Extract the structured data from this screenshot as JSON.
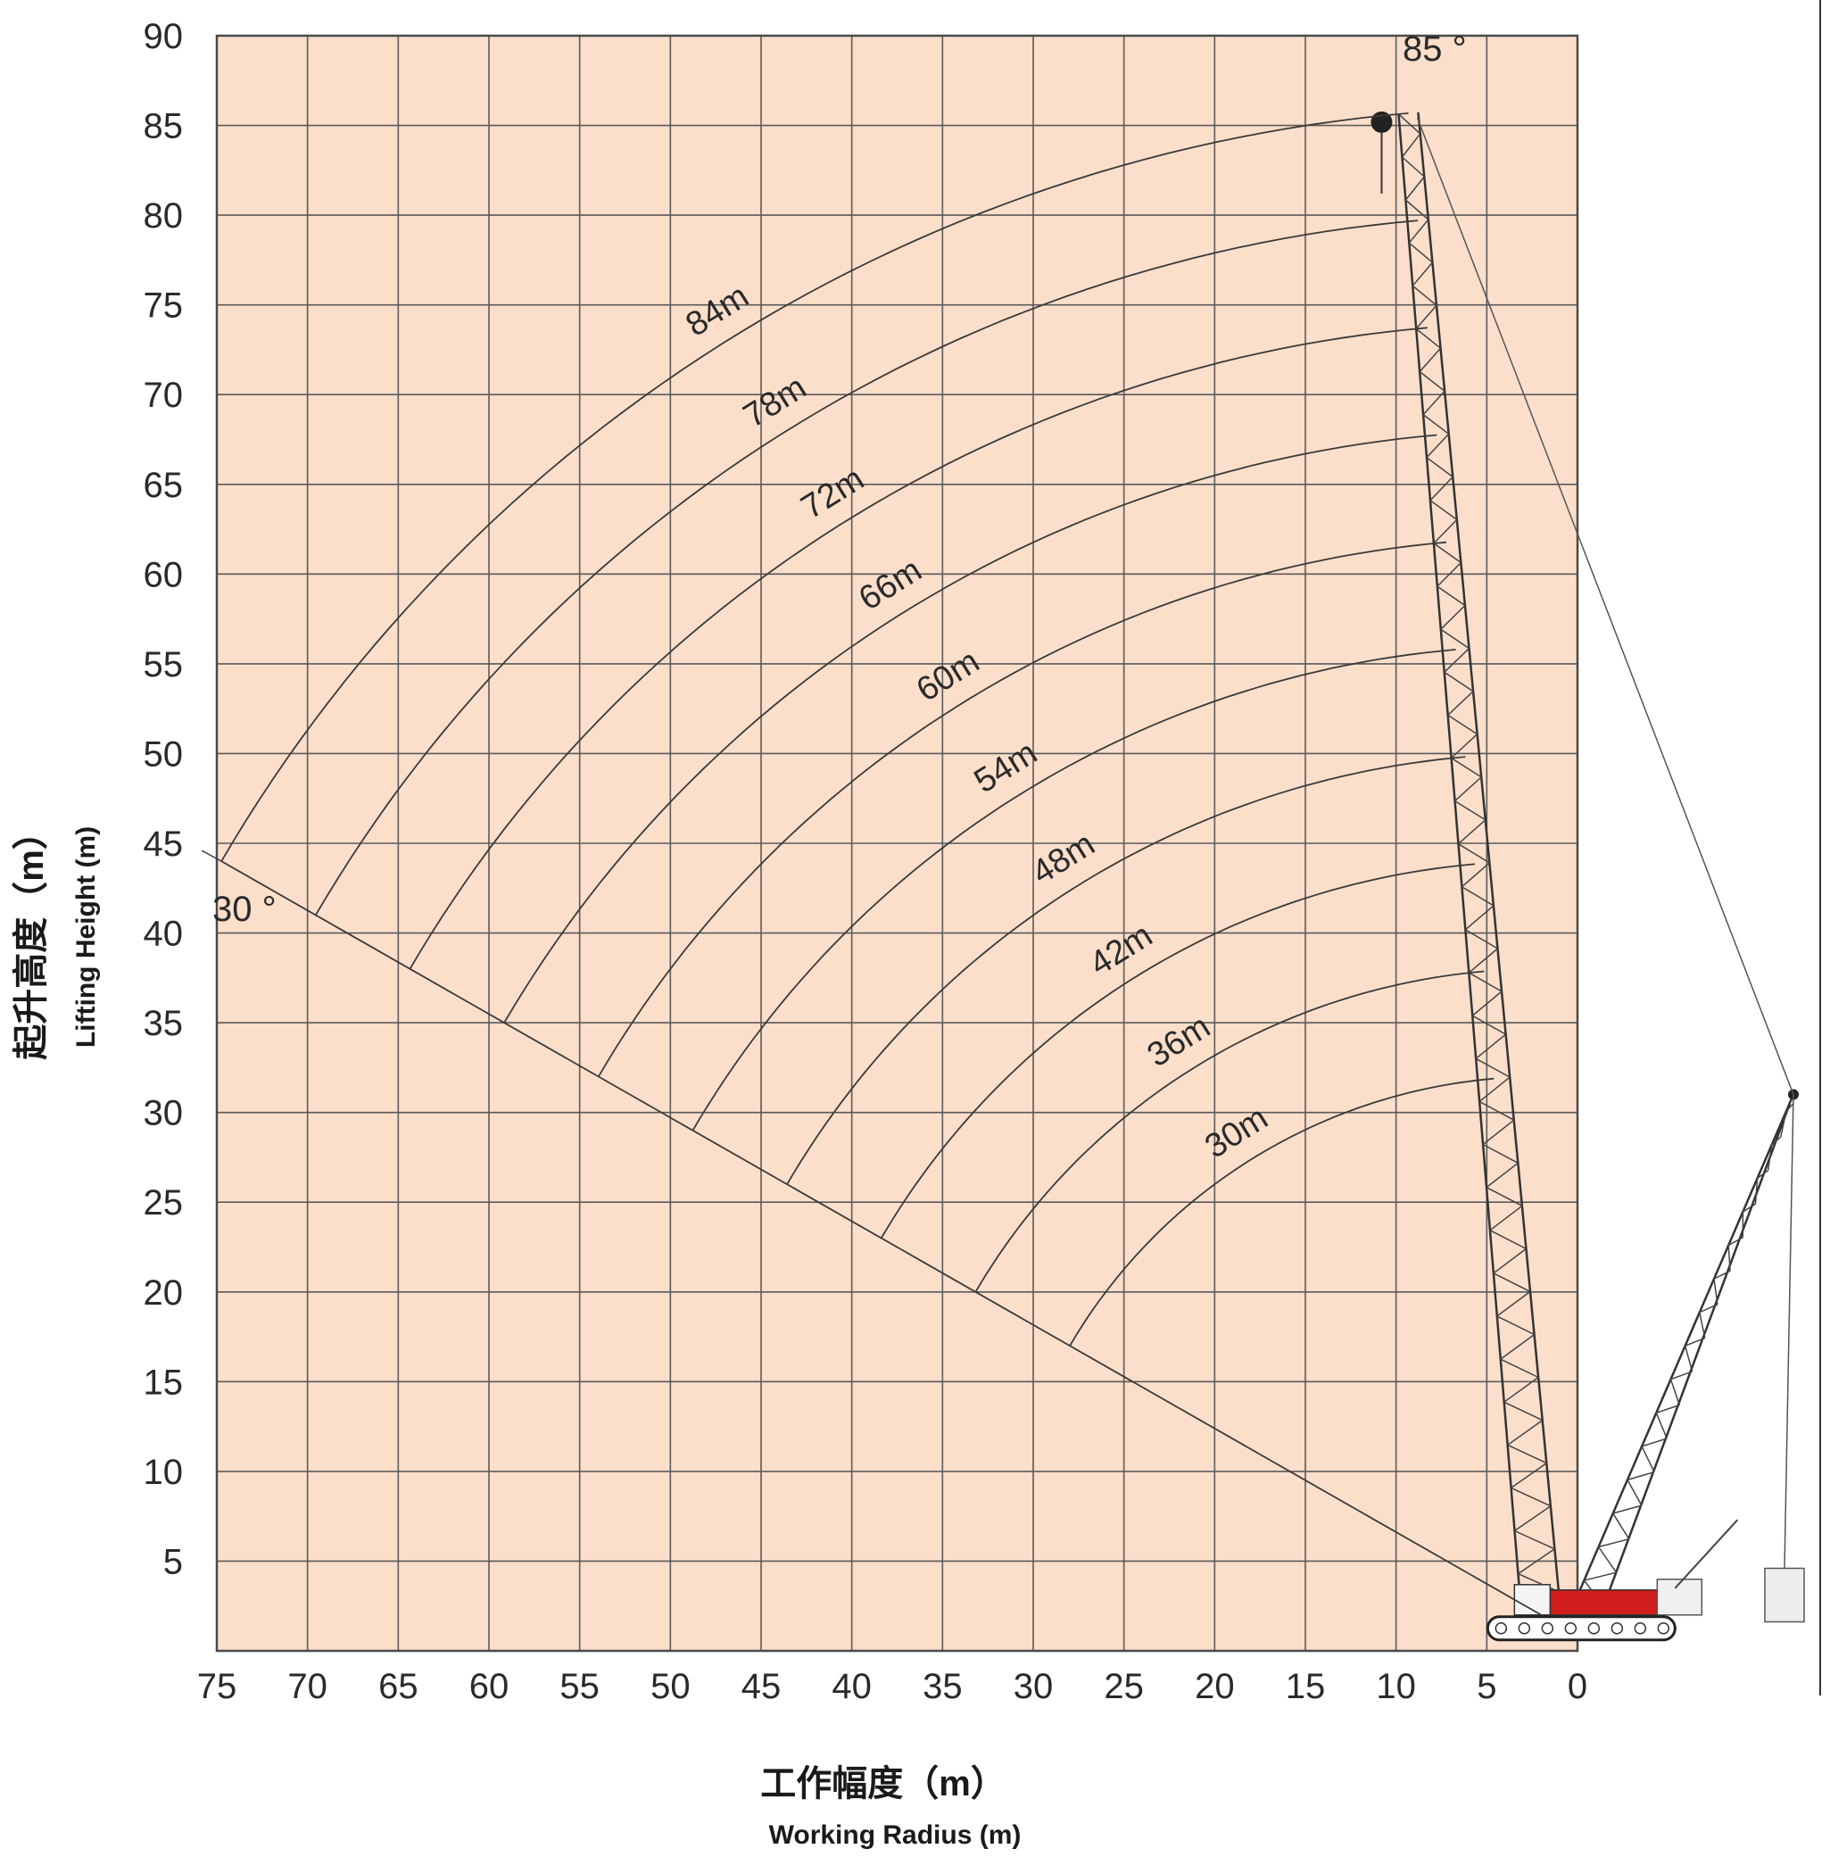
{
  "chart_data": {
    "type": "line",
    "title": "",
    "xlabel": "工作幅度（m）",
    "xlabel_en": "Working Radius (m)",
    "ylabel": "起升高度（m）",
    "ylabel_en": "Lifting Height (m)",
    "xlim": [
      75,
      0
    ],
    "ylim": [
      0,
      90
    ],
    "x_ticks": [
      75,
      70,
      65,
      60,
      55,
      50,
      45,
      40,
      35,
      30,
      25,
      20,
      15,
      10,
      5,
      0
    ],
    "y_ticks": [
      90,
      85,
      80,
      75,
      70,
      65,
      60,
      55,
      50,
      45,
      40,
      35,
      30,
      25,
      20,
      15,
      10,
      5
    ],
    "grid": true,
    "background_color": "#fbdfcb",
    "grid_color": "#5a5a5a",
    "min_boom_angle_label": "30 °",
    "max_boom_angle_label": "85 °",
    "angle_range_deg": [
      30,
      85
    ],
    "pivot": {
      "x": 2,
      "y": 2
    },
    "series": [
      {
        "name": "84m",
        "boom_length": 84
      },
      {
        "name": "78m",
        "boom_length": 78
      },
      {
        "name": "72m",
        "boom_length": 72
      },
      {
        "name": "66m",
        "boom_length": 66
      },
      {
        "name": "60m",
        "boom_length": 60
      },
      {
        "name": "54m",
        "boom_length": 54
      },
      {
        "name": "48m",
        "boom_length": 48
      },
      {
        "name": "42m",
        "boom_length": 42
      },
      {
        "name": "36m",
        "boom_length": 36
      },
      {
        "name": "30m",
        "boom_length": 30
      }
    ]
  }
}
